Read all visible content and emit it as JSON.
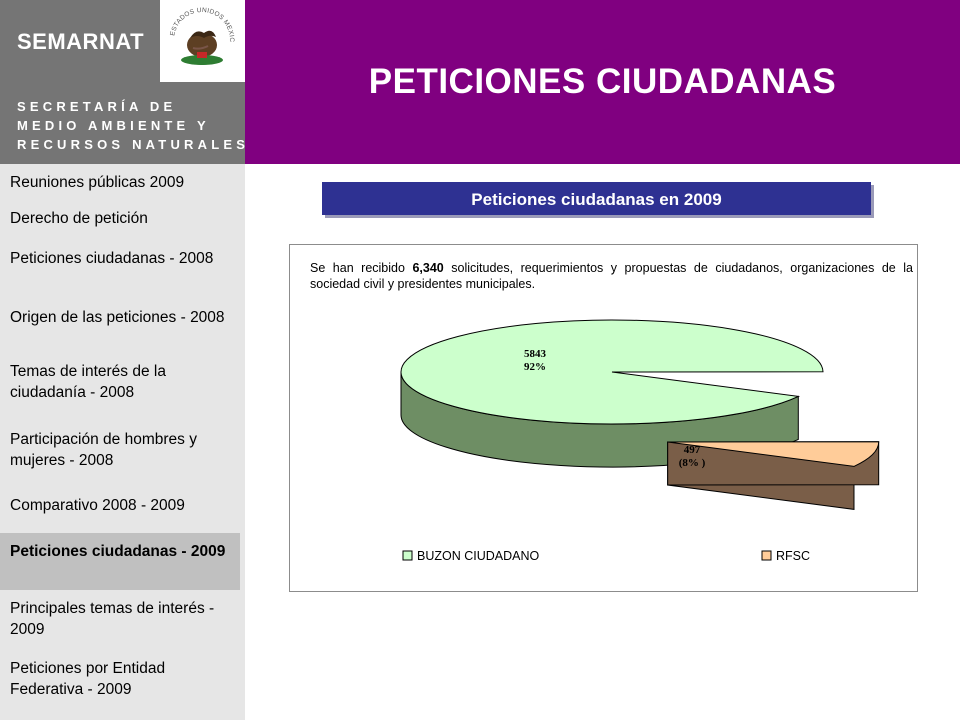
{
  "brand": {
    "name": "SEMARNAT",
    "subtitle_lines": [
      "SECRETARÍA DE",
      "MEDIO AMBIENTE Y",
      "RECURSOS NATURALES"
    ],
    "seal_caption": "ESTADOS UNIDOS MEXICANOS"
  },
  "header": {
    "title": "PETICIONES CIUDADANAS"
  },
  "sidebar": {
    "items": [
      {
        "label": "Reuniones públicas 2009"
      },
      {
        "label": "Derecho de petición"
      },
      {
        "label": "Peticiones ciudadanas - 2008"
      },
      {
        "label": "Origen de las peticiones - 2008"
      },
      {
        "label": "Temas de interés de la ciudadanía - 2008"
      },
      {
        "label": "Participación de hombres y mujeres - 2008"
      },
      {
        "label": "Comparativo 2008 - 2009"
      },
      {
        "label": "Peticiones ciudadanas - 2009"
      },
      {
        "label": "Principales temas de interés - 2009"
      },
      {
        "label": "Peticiones por Entidad Federativa - 2009"
      }
    ],
    "active_index": 7
  },
  "section": {
    "title": "Peticiones ciudadanas en 2009"
  },
  "description": {
    "before": "Se han recibido ",
    "highlight": "6,340",
    "after": " solicitudes, requerimientos y propuestas de ciudadanos, organizaciones de la sociedad civil y presidentes municipales."
  },
  "chart_data": {
    "type": "pie",
    "title": "",
    "categories": [
      "BUZON CIUDADANO",
      "RFSC"
    ],
    "values": [
      5843,
      497
    ],
    "value_labels": [
      "5843",
      "497"
    ],
    "percent_labels": [
      "92%",
      "(8% )"
    ],
    "legend": "bottom",
    "colors": {
      "BUZON CIUDADANO": {
        "top": "#ccffcc",
        "side": "#6e8e64"
      },
      "RFSC": {
        "top": "#ffcc99",
        "side": "#7a5e48"
      }
    }
  },
  "colors": {
    "header_bg": "#800080",
    "brand_bg": "#757575",
    "section_title_bg": "#2e3192",
    "sidebar_bg": "#e6e6e6",
    "sidebar_active_bg": "#c0c0c0"
  }
}
